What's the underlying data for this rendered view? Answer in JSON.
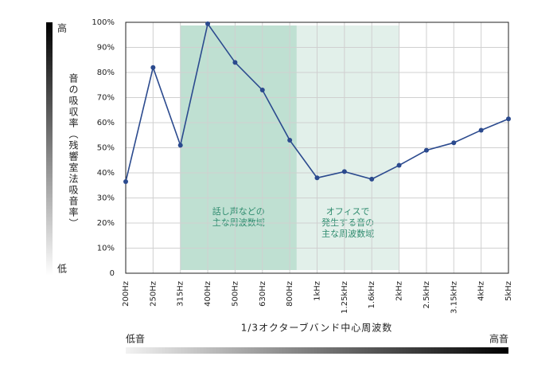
{
  "chart_data": {
    "type": "line",
    "categories": [
      "200Hz",
      "250Hz",
      "315Hz",
      "400Hz",
      "500Hz",
      "630Hz",
      "800Hz",
      "1kHz",
      "1.25kHz",
      "1.6kHz",
      "2kHz",
      "2.5kHz",
      "3.15kHz",
      "4kHz",
      "5kHz"
    ],
    "series": [
      {
        "name": "音の吸収率",
        "color": "#2b4a8e",
        "values": [
          36.5,
          82,
          51,
          99.4,
          84,
          73,
          53,
          38,
          40.5,
          37.5,
          43,
          49,
          52,
          57,
          61.5
        ]
      }
    ],
    "ylim": [
      0,
      100
    ],
    "yticks": [
      0,
      {
        "value": 10,
        "label": "10%"
      },
      {
        "value": 20,
        "label": "20%"
      },
      {
        "value": 30,
        "label": "30%"
      },
      {
        "value": 40,
        "label": "40%"
      },
      {
        "value": 50,
        "label": "50%"
      },
      {
        "value": 60,
        "label": "60%"
      },
      {
        "value": 70,
        "label": "70%"
      },
      {
        "value": 80,
        "label": "80%"
      },
      {
        "value": 90,
        "label": "90%"
      },
      {
        "value": 100,
        "label": "100%"
      }
    ],
    "grid": true,
    "y_label": "音の吸収率（残響室法吸音率）",
    "x_label": "1/3オクターブバンド中心周波数",
    "y_scale_high": "高",
    "y_scale_low": "低",
    "x_scale_low": "低音",
    "x_scale_high": "高音",
    "regions": [
      {
        "lines": [
          "オフィスで",
          "発生する音の",
          "主な周波数域"
        ],
        "color": "#e2f0ea"
      },
      {
        "lines": [
          "話し声などの",
          "主な周波数域"
        ],
        "color": "#bfe0d2"
      }
    ]
  }
}
